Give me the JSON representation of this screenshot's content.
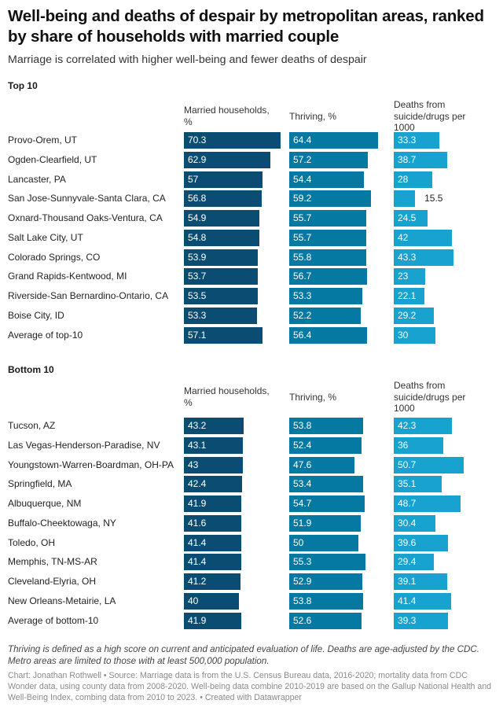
{
  "title": "Well-being and deaths of despair by metropolitan areas, ranked by share of households with married couple",
  "subtitle": "Marriage is correlated with higher well-being and fewer deaths of despair",
  "columns": {
    "married": "Married households, %",
    "thriving": "Thriving, %",
    "deaths": "Deaths from suicide/drugs per 1000"
  },
  "colors": {
    "married": "#0b4d72",
    "thriving": "#0579a1",
    "deaths": "#17a2cf"
  },
  "notes": "Thriving is defined as a high score on current and anticipated evaluation of life. Deaths are age-adjusted by the CDC. Metro areas are limited to those with at least 500,000 population.",
  "source": "Chart: Jonathan Rothwell • Source: Marriage data is from the U.S. Census Bureau data, 2016-2020; mortality data from CDC Wonder data, using county data from 2008-2020. Well-being data combine 2010-2019 are based on the Gallup National Health and Well-Being Index, combing data from 2010 to 2023. • Created with Datawrapper",
  "chart_data": {
    "type": "table",
    "title": "Well-being and deaths of despair by metropolitan areas, ranked by share of households with married couple",
    "subtitle": "Marriage is correlated with higher well-being and fewer deaths of despair",
    "columns": [
      "Married households, %",
      "Thriving, %",
      "Deaths from suicide/drugs per 1000"
    ],
    "sections": [
      {
        "label": "Top 10",
        "rows": [
          {
            "name": "Provo-Orem, UT",
            "married": 70.3,
            "thriving": 64.4,
            "deaths": 33.3
          },
          {
            "name": "Ogden-Clearfield, UT",
            "married": 62.9,
            "thriving": 57.2,
            "deaths": 38.7
          },
          {
            "name": "Lancaster, PA",
            "married": 57,
            "thriving": 54.4,
            "deaths": 28
          },
          {
            "name": "San Jose-Sunnyvale-Santa Clara, CA",
            "married": 56.8,
            "thriving": 59.2,
            "deaths": 15.5
          },
          {
            "name": "Oxnard-Thousand Oaks-Ventura, CA",
            "married": 54.9,
            "thriving": 55.7,
            "deaths": 24.5
          },
          {
            "name": "Salt Lake City, UT",
            "married": 54.8,
            "thriving": 55.7,
            "deaths": 42
          },
          {
            "name": "Colorado Springs, CO",
            "married": 53.9,
            "thriving": 55.8,
            "deaths": 43.3
          },
          {
            "name": "Grand Rapids-Kentwood, MI",
            "married": 53.7,
            "thriving": 56.7,
            "deaths": 23
          },
          {
            "name": "Riverside-San Bernardino-Ontario, CA",
            "married": 53.5,
            "thriving": 53.3,
            "deaths": 22.1
          },
          {
            "name": "Boise City, ID",
            "married": 53.3,
            "thriving": 52.2,
            "deaths": 29.2
          },
          {
            "name": "Average of top-10",
            "married": 57.1,
            "thriving": 56.4,
            "deaths": 30
          }
        ]
      },
      {
        "label": "Bottom 10",
        "rows": [
          {
            "name": "Tucson, AZ",
            "married": 43.2,
            "thriving": 53.8,
            "deaths": 42.3
          },
          {
            "name": "Las Vegas-Henderson-Paradise, NV",
            "married": 43.1,
            "thriving": 52.4,
            "deaths": 36
          },
          {
            "name": "Youngstown-Warren-Boardman, OH-PA",
            "married": 43,
            "thriving": 47.6,
            "deaths": 50.7
          },
          {
            "name": "Springfield, MA",
            "married": 42.4,
            "thriving": 53.4,
            "deaths": 35.1
          },
          {
            "name": "Albuquerque, NM",
            "married": 41.9,
            "thriving": 54.7,
            "deaths": 48.7
          },
          {
            "name": "Buffalo-Cheektowaga, NY",
            "married": 41.6,
            "thriving": 51.9,
            "deaths": 30.4
          },
          {
            "name": "Toledo, OH",
            "married": 41.4,
            "thriving": 50,
            "deaths": 39.6
          },
          {
            "name": "Memphis, TN-MS-AR",
            "married": 41.4,
            "thriving": 55.3,
            "deaths": 29.4
          },
          {
            "name": "Cleveland-Elyria, OH",
            "married": 41.2,
            "thriving": 52.9,
            "deaths": 39.1
          },
          {
            "name": "New Orleans-Metairie, LA",
            "married": 40,
            "thriving": 53.8,
            "deaths": 41.4
          },
          {
            "name": "Average of bottom-10",
            "married": 41.9,
            "thriving": 52.6,
            "deaths": 39.3
          }
        ]
      }
    ]
  }
}
